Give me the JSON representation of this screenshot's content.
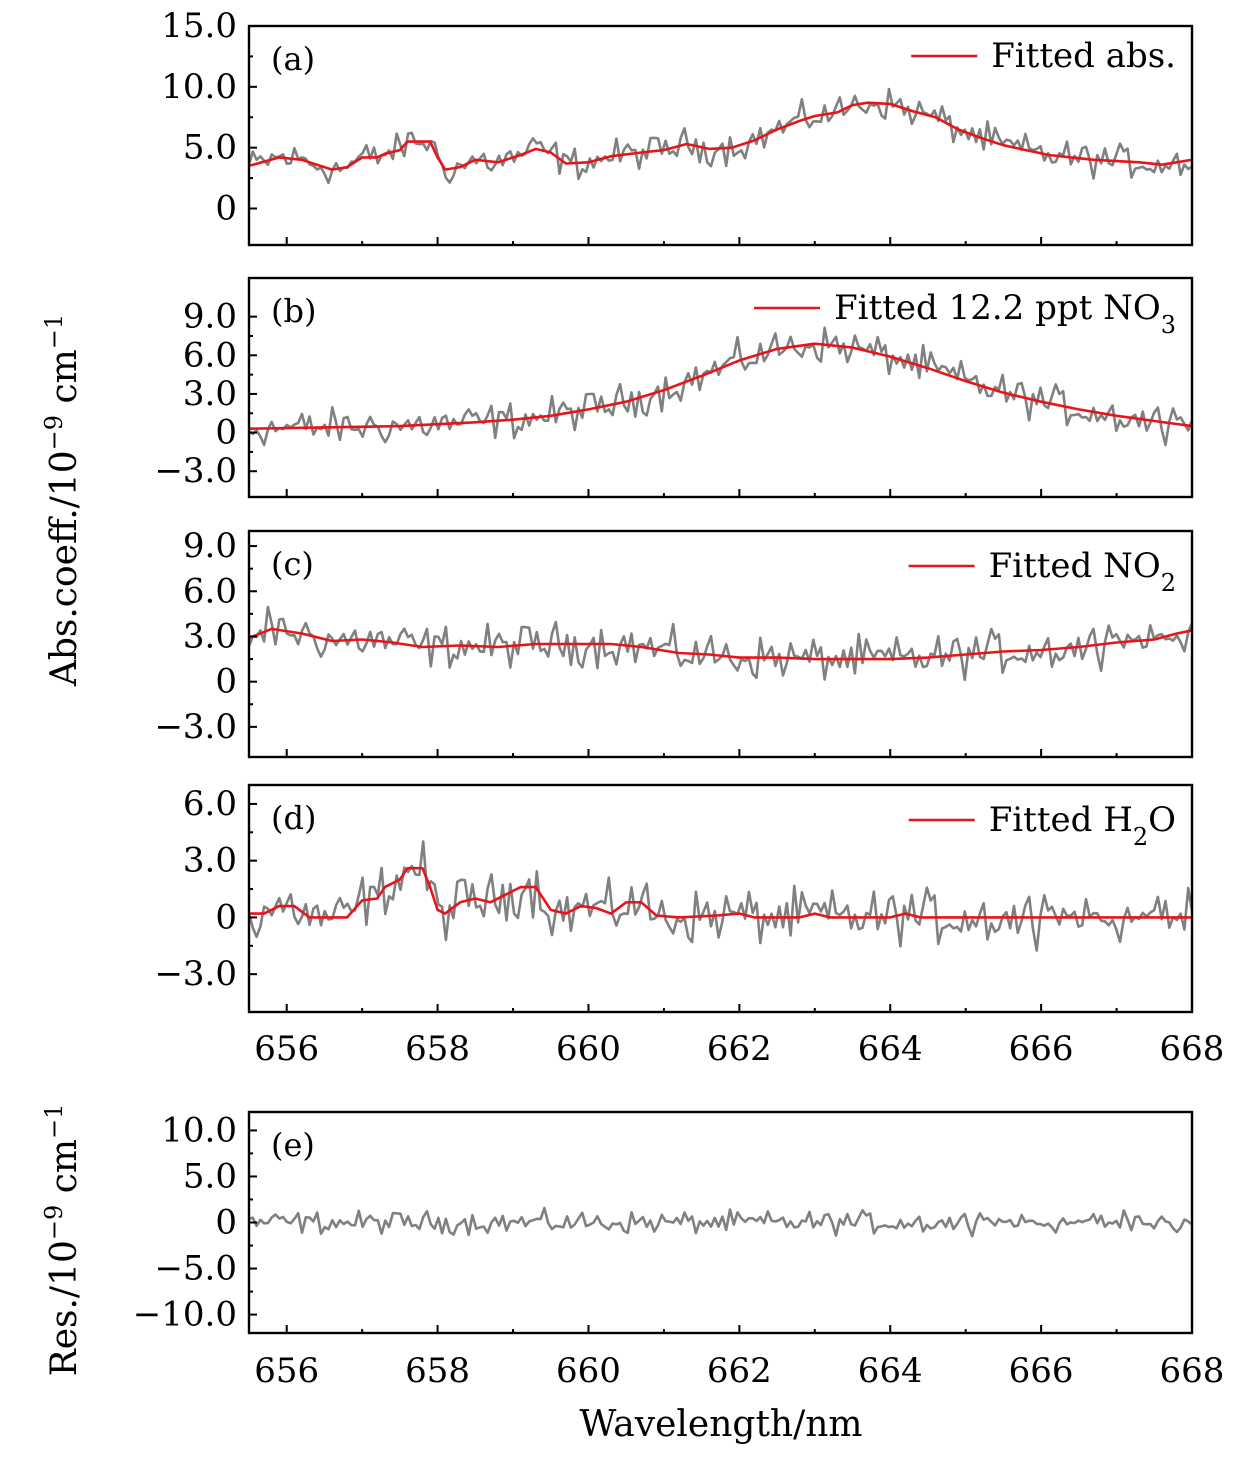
{
  "colors": {
    "measured": "#808080",
    "fitted": "#e8141a",
    "axes": "#000000"
  },
  "chart_data": {
    "type": "line",
    "x_range": [
      655.5,
      668
    ],
    "x_ticks": [
      "656",
      "658",
      "660",
      "662",
      "664",
      "666",
      "668"
    ],
    "xlabel": "Wavelength/nm",
    "ylabel_main": "Abs.coeff./10",
    "ylabel_main_exp": "−9",
    "ylabel_main_unit": " cm",
    "ylabel_main_unit_exp": "−1",
    "ylabel_res": "Res./10",
    "ylabel_res_exp": "−9",
    "ylabel_res_unit": " cm",
    "ylabel_res_unit_exp": "−1",
    "panels": [
      {
        "id": "a",
        "letter": "(a)",
        "ylim": [
          -3,
          15
        ],
        "y_ticks": [
          {
            "v": 0,
            "t": "0"
          },
          {
            "v": 5,
            "t": "5.0"
          },
          {
            "v": 10,
            "t": "10.0"
          },
          {
            "v": 15,
            "t": "15.0"
          }
        ],
        "legend": {
          "text": "Fitted abs.",
          "sub": "",
          "tail": ""
        },
        "fit_points": [
          [
            655.5,
            3.5
          ],
          [
            655.9,
            4.2
          ],
          [
            656.2,
            4.0
          ],
          [
            656.6,
            3.2
          ],
          [
            656.8,
            3.4
          ],
          [
            657.0,
            4.2
          ],
          [
            657.2,
            4.2
          ],
          [
            657.3,
            4.5
          ],
          [
            657.5,
            4.8
          ],
          [
            657.6,
            5.5
          ],
          [
            657.9,
            5.5
          ],
          [
            658.0,
            4.2
          ],
          [
            658.1,
            3.2
          ],
          [
            658.3,
            3.4
          ],
          [
            658.5,
            4.0
          ],
          [
            658.8,
            3.8
          ],
          [
            659.1,
            4.4
          ],
          [
            659.3,
            4.9
          ],
          [
            659.5,
            4.6
          ],
          [
            659.7,
            3.7
          ],
          [
            660.0,
            3.8
          ],
          [
            660.3,
            4.3
          ],
          [
            660.7,
            4.6
          ],
          [
            661.0,
            4.8
          ],
          [
            661.3,
            5.3
          ],
          [
            661.6,
            4.9
          ],
          [
            661.9,
            5.0
          ],
          [
            662.2,
            5.6
          ],
          [
            662.5,
            6.5
          ],
          [
            662.8,
            7.2
          ],
          [
            663.0,
            7.6
          ],
          [
            663.3,
            7.9
          ],
          [
            663.5,
            8.5
          ],
          [
            663.7,
            8.7
          ],
          [
            664.0,
            8.6
          ],
          [
            664.3,
            8.0
          ],
          [
            664.6,
            7.5
          ],
          [
            664.9,
            6.5
          ],
          [
            665.2,
            5.8
          ],
          [
            665.5,
            5.2
          ],
          [
            665.8,
            4.8
          ],
          [
            666.1,
            4.4
          ],
          [
            666.4,
            4.2
          ],
          [
            666.7,
            4.0
          ],
          [
            667.0,
            3.9
          ],
          [
            667.3,
            3.8
          ],
          [
            667.6,
            3.6
          ],
          [
            668.0,
            4.0
          ]
        ],
        "meas_base": "fit",
        "meas_noise": 1.2
      },
      {
        "id": "b",
        "letter": "(b)",
        "ylim": [
          -5,
          12
        ],
        "y_ticks": [
          {
            "v": -3,
            "t": "−3.0"
          },
          {
            "v": 0,
            "t": "0"
          },
          {
            "v": 3,
            "t": "3.0"
          },
          {
            "v": 6,
            "t": "6.0"
          },
          {
            "v": 9,
            "t": "9.0"
          }
        ],
        "legend": {
          "text": "Fitted 12.2 ppt NO",
          "sub": "3",
          "tail": ""
        },
        "fit_points": [
          [
            655.5,
            0.3
          ],
          [
            656.5,
            0.4
          ],
          [
            657.5,
            0.5
          ],
          [
            658.5,
            0.8
          ],
          [
            659.0,
            1.0
          ],
          [
            659.5,
            1.3
          ],
          [
            660.0,
            1.8
          ],
          [
            660.5,
            2.4
          ],
          [
            661.0,
            3.3
          ],
          [
            661.5,
            4.4
          ],
          [
            662.0,
            5.6
          ],
          [
            662.5,
            6.5
          ],
          [
            663.0,
            6.9
          ],
          [
            663.5,
            6.6
          ],
          [
            664.0,
            5.9
          ],
          [
            664.5,
            5.0
          ],
          [
            665.0,
            4.0
          ],
          [
            665.5,
            3.1
          ],
          [
            666.0,
            2.4
          ],
          [
            666.5,
            1.8
          ],
          [
            667.0,
            1.3
          ],
          [
            667.5,
            0.9
          ],
          [
            668.0,
            0.5
          ]
        ],
        "meas_base": "fit",
        "meas_noise": 1.3
      },
      {
        "id": "c",
        "letter": "(c)",
        "ylim": [
          -5,
          10
        ],
        "y_ticks": [
          {
            "v": -3,
            "t": "−3.0"
          },
          {
            "v": 0,
            "t": "0"
          },
          {
            "v": 3,
            "t": "3.0"
          },
          {
            "v": 6,
            "t": "6.0"
          },
          {
            "v": 9,
            "t": "9.0"
          }
        ],
        "legend": {
          "text": "Fitted NO",
          "sub": "2",
          "tail": ""
        },
        "fit_points": [
          [
            655.5,
            2.9
          ],
          [
            655.8,
            3.5
          ],
          [
            656.2,
            3.2
          ],
          [
            656.6,
            2.7
          ],
          [
            657.0,
            2.8
          ],
          [
            657.4,
            2.6
          ],
          [
            657.8,
            2.3
          ],
          [
            658.3,
            2.4
          ],
          [
            658.8,
            2.3
          ],
          [
            659.3,
            2.5
          ],
          [
            659.8,
            2.5
          ],
          [
            660.3,
            2.5
          ],
          [
            660.7,
            2.3
          ],
          [
            661.2,
            1.9
          ],
          [
            661.6,
            1.8
          ],
          [
            662.0,
            1.6
          ],
          [
            662.5,
            1.6
          ],
          [
            663.0,
            1.5
          ],
          [
            663.5,
            1.5
          ],
          [
            664.0,
            1.5
          ],
          [
            664.5,
            1.6
          ],
          [
            665.0,
            1.8
          ],
          [
            665.5,
            2.0
          ],
          [
            666.0,
            2.1
          ],
          [
            666.5,
            2.3
          ],
          [
            667.0,
            2.6
          ],
          [
            667.5,
            2.8
          ],
          [
            667.8,
            3.2
          ],
          [
            668.0,
            3.4
          ]
        ],
        "meas_base": "fit",
        "meas_noise": 1.3
      },
      {
        "id": "d",
        "letter": "(d)",
        "ylim": [
          -5,
          7
        ],
        "y_ticks": [
          {
            "v": -3,
            "t": "−3.0"
          },
          {
            "v": 0,
            "t": "0"
          },
          {
            "v": 3,
            "t": "3.0"
          },
          {
            "v": 6,
            "t": "6.0"
          }
        ],
        "legend": {
          "text": "Fitted H",
          "sub": "2",
          "tail": "O"
        },
        "fit_points": [
          [
            655.5,
            0.2
          ],
          [
            655.7,
            0.2
          ],
          [
            655.9,
            0.6
          ],
          [
            656.1,
            0.6
          ],
          [
            656.3,
            0.0
          ],
          [
            656.8,
            0.0
          ],
          [
            657.0,
            0.9
          ],
          [
            657.2,
            1.0
          ],
          [
            657.3,
            1.6
          ],
          [
            657.5,
            2.0
          ],
          [
            657.6,
            2.6
          ],
          [
            657.8,
            2.6
          ],
          [
            657.9,
            1.6
          ],
          [
            658.0,
            0.4
          ],
          [
            658.1,
            0.2
          ],
          [
            658.3,
            0.8
          ],
          [
            658.5,
            1.0
          ],
          [
            658.7,
            0.8
          ],
          [
            658.9,
            1.2
          ],
          [
            659.1,
            1.6
          ],
          [
            659.3,
            1.6
          ],
          [
            659.5,
            0.4
          ],
          [
            659.7,
            0.2
          ],
          [
            659.9,
            0.6
          ],
          [
            660.1,
            0.5
          ],
          [
            660.3,
            0.2
          ],
          [
            660.5,
            0.8
          ],
          [
            660.7,
            0.8
          ],
          [
            660.9,
            0.1
          ],
          [
            661.2,
            0.0
          ],
          [
            661.7,
            0.1
          ],
          [
            662.0,
            0.2
          ],
          [
            662.2,
            0.0
          ],
          [
            662.8,
            0.0
          ],
          [
            663.0,
            0.2
          ],
          [
            663.2,
            0.0
          ],
          [
            664.0,
            0.0
          ],
          [
            664.2,
            0.2
          ],
          [
            664.4,
            0.0
          ],
          [
            668.0,
            0.0
          ]
        ],
        "meas_base": "fit",
        "meas_noise": 1.3
      },
      {
        "id": "e",
        "letter": "(e)",
        "ylim": [
          -12,
          12
        ],
        "y_ticks": [
          {
            "v": -10,
            "t": "−10.0"
          },
          {
            "v": -5,
            "t": "−5.0"
          },
          {
            "v": 0,
            "t": "0"
          },
          {
            "v": 5,
            "t": "5.0"
          },
          {
            "v": 10,
            "t": "10.0"
          }
        ],
        "legend": null,
        "fit_points": [],
        "meas_base": "zero",
        "meas_noise": 1.1
      }
    ]
  }
}
